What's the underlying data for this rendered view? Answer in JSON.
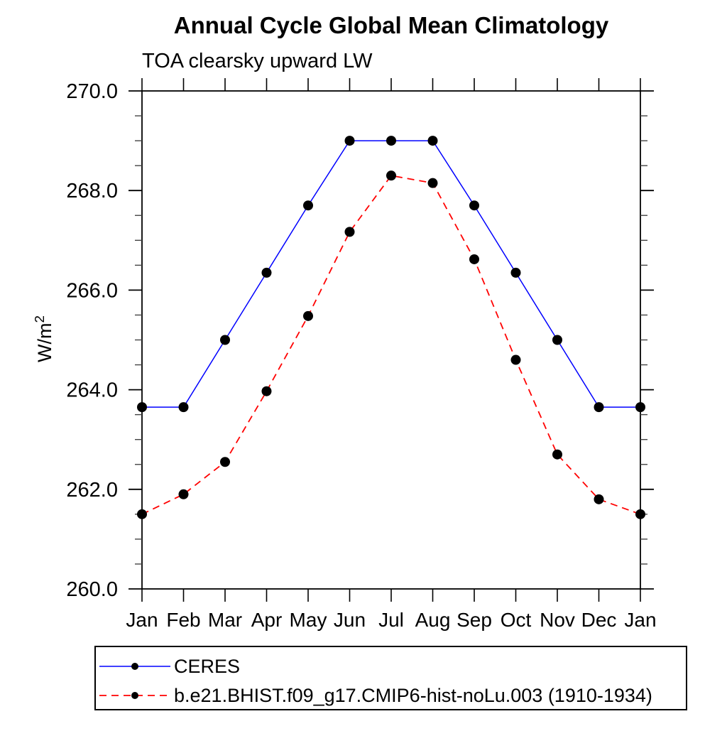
{
  "chart_data": {
    "type": "line",
    "title": "Annual Cycle Global Mean Climatology",
    "subtitle": "TOA clearsky upward LW",
    "ylabel": "W/m²",
    "xlabel": "",
    "x_categories": [
      "Jan",
      "Feb",
      "Mar",
      "Apr",
      "May",
      "Jun",
      "Jul",
      "Aug",
      "Sep",
      "Oct",
      "Nov",
      "Dec",
      "Jan"
    ],
    "ylim": [
      260.0,
      270.0
    ],
    "y_major_tick_step": 2.0,
    "y_minor_tick_step": 0.5,
    "y_major_tick_labels": [
      "260.0",
      "262.0",
      "264.0",
      "266.0",
      "268.0",
      "270.0"
    ],
    "grid": false,
    "legend_position": "bottom-left-box",
    "marker_color": "#000000",
    "series": [
      {
        "name": "CERES",
        "color": "#0000ff",
        "style": "solid",
        "marker": "circle",
        "values": [
          263.65,
          263.65,
          265.0,
          266.35,
          267.7,
          269.0,
          269.0,
          269.0,
          267.7,
          266.35,
          265.0,
          263.65,
          263.65
        ]
      },
      {
        "name": "b.e21.BHIST.f09_g17.CMIP6-hist-noLu.003 (1910-1934)",
        "color": "#ff0000",
        "style": "dashed",
        "marker": "circle",
        "values": [
          261.5,
          261.9,
          262.55,
          263.97,
          265.48,
          267.17,
          268.3,
          268.15,
          266.62,
          264.6,
          262.7,
          261.8,
          261.5
        ]
      }
    ]
  }
}
